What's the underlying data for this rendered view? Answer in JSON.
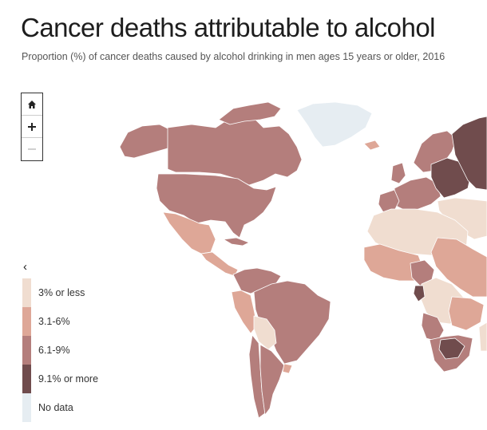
{
  "header": {
    "title": "Cancer deaths attributable to alcohol",
    "subtitle": "Proportion (%) of cancer deaths caused by alcohol drinking in men ages 15 years or older, 2016"
  },
  "zoom_controls": {
    "home_icon": "home-icon",
    "zoom_in_icon": "plus-icon",
    "zoom_out_icon": "minus-icon",
    "zoom_out_enabled": false
  },
  "legend": {
    "collapse_glyph": "‹",
    "items": [
      {
        "label": "3% or less",
        "color": "#f0ddd0"
      },
      {
        "label": "3.1-6%",
        "color": "#dea797"
      },
      {
        "label": "6.1-9%",
        "color": "#b47e7c"
      },
      {
        "label": "9.1% or more",
        "color": "#704c4d"
      },
      {
        "label": "No data",
        "color": "#e6edf2"
      }
    ]
  },
  "colors": {
    "ocean": "#ffffff",
    "border": "#ffffff",
    "tier_low": "#f0ddd0",
    "tier_mid_low": "#dea797",
    "tier_mid_high": "#b47e7c",
    "tier_high": "#704c4d",
    "no_data": "#e6edf2"
  }
}
